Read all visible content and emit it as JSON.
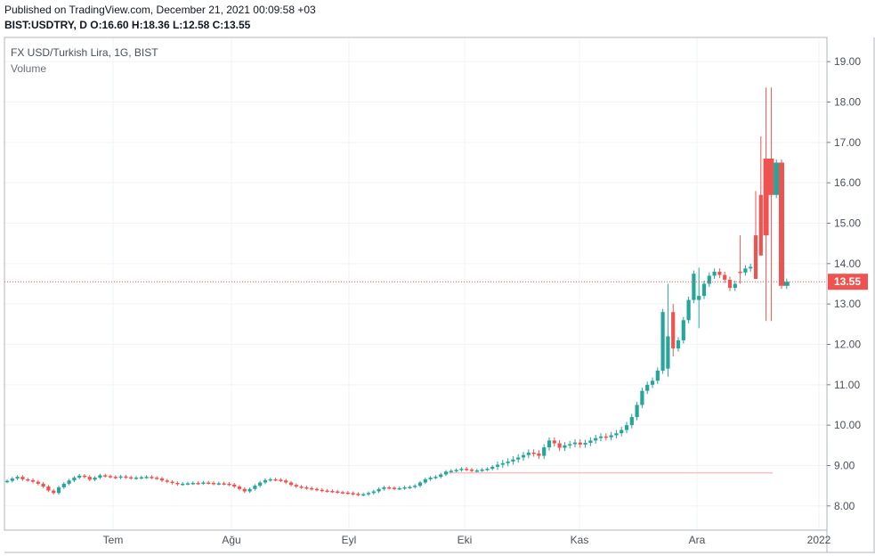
{
  "header": {
    "published": "Published on TradingView.com, December 21, 2021 00:09:58 +03",
    "ohlc": "BIST:USDTRY, D  O:16.60  H:18.36  L:12.58  C:13.55"
  },
  "chart_data": {
    "type": "candlestick",
    "title": "FX USD/Turkish Lira, 1G, BIST",
    "subtitle": "Volume",
    "ylim": [
      7.4,
      19.6
    ],
    "yticks": [
      "19.00",
      "18.00",
      "17.00",
      "16.00",
      "15.00",
      "14.00",
      "13.00",
      "12.00",
      "11.00",
      "10.00",
      "9.00",
      "8.00"
    ],
    "xticks": [
      "Tem",
      "Ağu",
      "Eyl",
      "Eki",
      "Kas",
      "Ara",
      "2022"
    ],
    "last_price": "13.55",
    "volume_baseline": 8.82,
    "colors": {
      "up": "#26a69a",
      "down": "#ef5350",
      "price_line": "#ef5350",
      "last_label_bg": "#ef5350",
      "grid": "#f0f3fa",
      "axis": "#787b86"
    },
    "grid": true,
    "legend_position": "top-left",
    "closes": [
      8.62,
      8.68,
      8.72,
      8.66,
      8.64,
      8.6,
      8.55,
      8.48,
      8.38,
      8.32,
      8.46,
      8.55,
      8.63,
      8.7,
      8.75,
      8.72,
      8.65,
      8.7,
      8.76,
      8.74,
      8.72,
      8.7,
      8.73,
      8.71,
      8.69,
      8.7,
      8.71,
      8.72,
      8.7,
      8.68,
      8.63,
      8.6,
      8.57,
      8.54,
      8.55,
      8.56,
      8.57,
      8.56,
      8.58,
      8.57,
      8.55,
      8.56,
      8.55,
      8.53,
      8.48,
      8.42,
      8.36,
      8.42,
      8.5,
      8.58,
      8.64,
      8.66,
      8.65,
      8.63,
      8.58,
      8.52,
      8.48,
      8.46,
      8.44,
      8.42,
      8.4,
      8.38,
      8.37,
      8.36,
      8.34,
      8.33,
      8.32,
      8.3,
      8.28,
      8.29,
      8.32,
      8.36,
      8.42,
      8.46,
      8.45,
      8.43,
      8.44,
      8.46,
      8.47,
      8.5,
      8.58,
      8.66,
      8.7,
      8.72,
      8.78,
      8.85,
      8.87,
      8.89,
      8.92,
      8.9,
      8.87,
      8.88,
      8.9,
      8.92,
      8.97,
      9.02,
      9.06,
      9.1,
      9.15,
      9.2,
      9.26,
      9.32,
      9.3,
      9.24,
      9.45,
      9.62,
      9.55,
      9.44,
      9.5,
      9.53,
      9.57,
      9.52,
      9.56,
      9.62,
      9.68,
      9.72,
      9.7,
      9.75,
      9.8,
      9.88,
      10.0,
      10.2,
      10.5,
      10.85,
      11.0,
      11.1,
      11.35,
      12.8,
      12.2,
      11.9,
      12.1,
      12.6,
      13.1,
      13.75,
      13.2,
      13.5,
      13.7,
      13.8,
      13.72,
      13.6,
      13.4,
      13.5,
      13.78,
      13.88,
      13.92,
      13.62,
      14.2,
      14.7,
      15.7,
      16.5,
      13.45,
      13.55
    ],
    "ranges": [
      {
        "i": 128,
        "open": 11.4,
        "high": 13.5,
        "low": 11.2
      },
      {
        "i": 129,
        "open": 12.8,
        "high": 13.0,
        "low": 11.7
      },
      {
        "i": 134,
        "open": 13.1,
        "high": 13.9,
        "low": 12.4
      },
      {
        "i": 142,
        "open": 13.8,
        "high": 14.7,
        "low": 13.5
      },
      {
        "i": 145,
        "open": 14.7,
        "high": 15.8,
        "low": 14.6
      },
      {
        "i": 146,
        "open": 15.7,
        "high": 17.15,
        "low": 15.6
      },
      {
        "i": 147,
        "open": 16.6,
        "high": 18.36,
        "low": 12.58
      },
      {
        "i": 148,
        "open": 16.6,
        "high": 18.36,
        "low": 12.58
      }
    ]
  }
}
